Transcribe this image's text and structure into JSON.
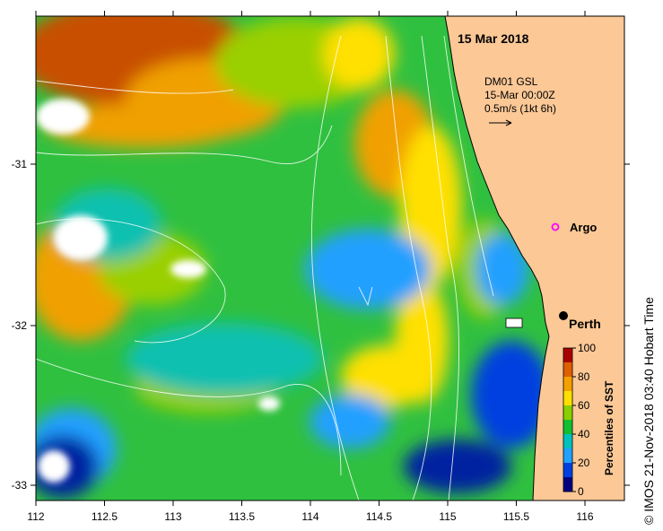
{
  "map": {
    "date_title": "15 Mar 2018",
    "current_info": {
      "line1": "DM01 GSL",
      "line2": "15-Mar 00:00Z",
      "line3": "0.5m/s (1kt 6h)"
    },
    "labels": {
      "argo": "Argo",
      "perth": "Perth"
    },
    "credit": "© IMOS 21-Nov-2018 03:40 Hobart Time",
    "x_ticks": [
      "112",
      "112.5",
      "113",
      "113.5",
      "114",
      "114.5",
      "115",
      "115.5",
      "116"
    ],
    "y_ticks": [
      "-31",
      "-32",
      "-33"
    ],
    "colorbar": {
      "title": "Percentiles of SST",
      "ticks": [
        "100",
        "80",
        "60",
        "40",
        "20",
        "0"
      ],
      "colors": [
        "#aa0000",
        "#e06000",
        "#f5a000",
        "#ffe000",
        "#88d000",
        "#10c030",
        "#00c0c0",
        "#20a0ff",
        "#0040e0",
        "#000080"
      ]
    },
    "colors": {
      "land": "#fbc896",
      "argo_marker": "#ff00ff",
      "perth_marker": "#000000"
    }
  }
}
